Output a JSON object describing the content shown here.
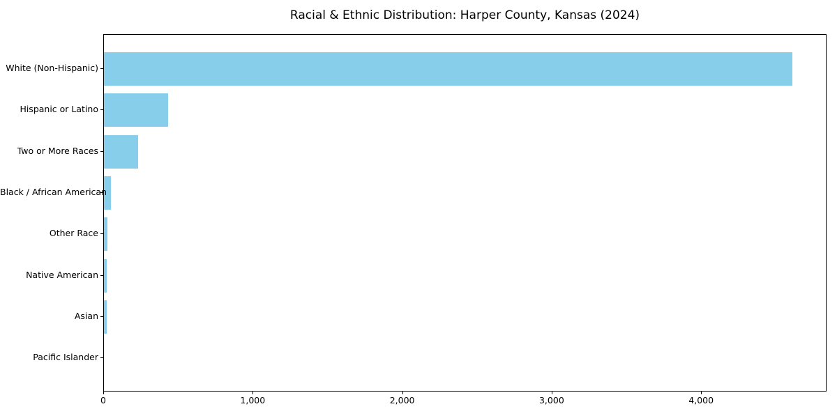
{
  "figure": {
    "background": "#ffffff"
  },
  "chart_data": {
    "type": "bar",
    "orientation": "horizontal",
    "title": "Racial & Ethnic Distribution: Harper County, Kansas (2024)",
    "categories": [
      "White (Non-Hispanic)",
      "Hispanic or Latino",
      "Two or More Races",
      "Black / African American",
      "Other Race",
      "Native American",
      "Asian",
      "Pacific Islander"
    ],
    "values": [
      4615,
      430,
      230,
      48,
      22,
      21,
      20,
      0
    ],
    "xlabel": "",
    "ylabel": "",
    "xlim": [
      0,
      4839
    ],
    "x_ticks": [
      {
        "value": 0,
        "label": "0"
      },
      {
        "value": 1000,
        "label": "1,000"
      },
      {
        "value": 2000,
        "label": "2,000"
      },
      {
        "value": 3000,
        "label": "3,000"
      },
      {
        "value": 4000,
        "label": "4,000"
      }
    ],
    "bar_color": "#87CEEB",
    "axis_color": "#000000",
    "text_color": "#000000",
    "grid": false,
    "legend_position": "none"
  }
}
